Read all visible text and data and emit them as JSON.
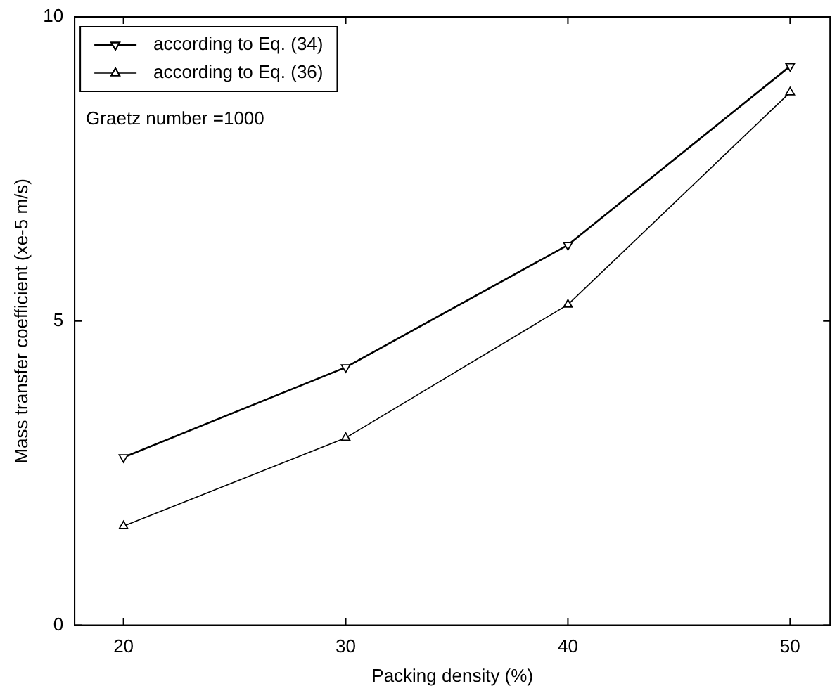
{
  "chart_data": {
    "type": "line",
    "xlabel": "Packing density (%)",
    "ylabel": "Mass transfer coefficient (xe-5 m/s)",
    "x": [
      20,
      30,
      40,
      50
    ],
    "series": [
      {
        "name": "according to Eq. (34)",
        "color": "#000000",
        "values": [
          2.76,
          4.24,
          6.25,
          9.19
        ]
      },
      {
        "name": "according to Eq. (36)",
        "color": "#000000",
        "values": [
          1.63,
          3.08,
          5.27,
          8.76
        ]
      }
    ],
    "xlim": [
      17.8,
      51.8
    ],
    "ylim": [
      0,
      10
    ],
    "xticks": [
      20,
      30,
      40,
      50
    ],
    "yticks": [
      0,
      5,
      10
    ],
    "grid": false,
    "legend": "top left",
    "marker": "triangle",
    "line_style": "solid",
    "annotations": [
      "Graetz number =1000"
    ]
  }
}
